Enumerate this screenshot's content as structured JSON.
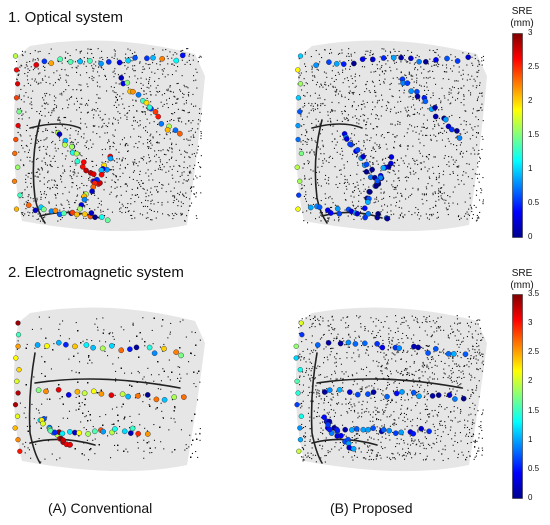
{
  "sections": [
    {
      "title": "1. Optical system",
      "colorbar": {
        "title_line1": "SRE",
        "title_line2": "(mm)",
        "min": 0,
        "max": 3,
        "ticks": [
          "3",
          "2.5",
          "2",
          "1.5",
          "1",
          "0.5",
          "0"
        ]
      }
    },
    {
      "title": "2. Electromagnetic system",
      "colorbar": {
        "title_line1": "SRE",
        "title_line2": "(mm)",
        "min": 0,
        "max": 3.5,
        "ticks": [
          "3.5",
          "3",
          "2.5",
          "2",
          "1.5",
          "1",
          "0.5",
          "0"
        ]
      }
    }
  ],
  "columns": [
    {
      "label": "(A) Conventional"
    },
    {
      "label": "(B) Proposed"
    }
  ],
  "colors": {
    "jet_low": "#00008f",
    "jet_mid": "#7fff7f",
    "jet_high": "#800000",
    "face_fill": "#e4e4e4",
    "point_cloud": "#111111"
  }
}
